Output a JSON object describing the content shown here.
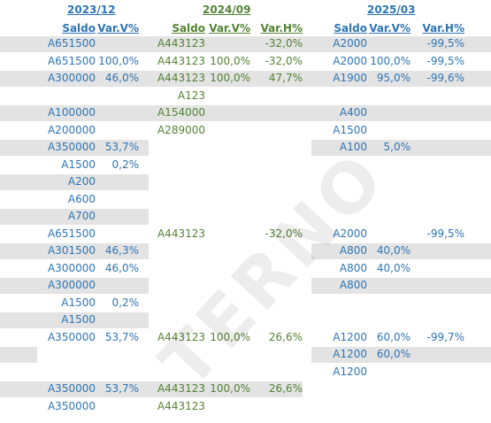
{
  "periods": [
    {
      "label": "2023/12",
      "columns": [
        "Saldo",
        "Var.V%"
      ]
    },
    {
      "label": "2024/09",
      "columns": [
        "Saldo",
        "Var.V%",
        "Var.H%"
      ]
    },
    {
      "label": "2025/03",
      "columns": [
        "Saldo",
        "Var.V%",
        "Var.H%"
      ]
    }
  ],
  "watermark": "TERNO",
  "rows": [
    {
      "band": [
        0,
        555
      ],
      "cells": [
        "A651500",
        "",
        "A443123",
        "",
        "-32,0%",
        "A2000",
        "",
        "-99,5%"
      ]
    },
    {
      "band": null,
      "cells": [
        "A651500",
        "100,0%",
        "A443123",
        "100,0%",
        "-32,0%",
        "A2000",
        "100,0%",
        "-99,5%"
      ]
    },
    {
      "band": [
        0,
        555
      ],
      "cells": [
        "A300000",
        "46,0%",
        "A443123",
        "100,0%",
        "47,7%",
        "A1900",
        "95,0%",
        "-99,6%"
      ]
    },
    {
      "band": null,
      "cells": [
        "",
        "",
        "A123",
        "",
        "",
        "",
        "",
        ""
      ]
    },
    {
      "band": [
        0,
        555
      ],
      "cells": [
        "A100000",
        "",
        "A154000",
        "",
        "",
        "A400",
        "",
        ""
      ]
    },
    {
      "band": null,
      "cells": [
        "A200000",
        "",
        "A289000",
        "",
        "",
        "A1500",
        "",
        ""
      ]
    },
    {
      "band": [
        0,
        168
      ],
      "band2": [
        352,
        555
      ],
      "cells": [
        "A350000",
        "53,7%",
        "",
        "",
        "",
        "A100",
        "5,0%",
        ""
      ]
    },
    {
      "band": null,
      "cells": [
        "A1500",
        "0,2%",
        "",
        "",
        "",
        "",
        "",
        ""
      ]
    },
    {
      "band": [
        0,
        168
      ],
      "cells": [
        "A200",
        "",
        "",
        "",
        "",
        "",
        "",
        ""
      ]
    },
    {
      "band": null,
      "cells": [
        "A600",
        "",
        "",
        "",
        "",
        "",
        "",
        ""
      ]
    },
    {
      "band": [
        0,
        168
      ],
      "cells": [
        "A700",
        "",
        "",
        "",
        "",
        "",
        "",
        ""
      ]
    },
    {
      "band": null,
      "cells": [
        "A651500",
        "",
        "A443123",
        "",
        "-32,0%",
        "A2000",
        "",
        "-99,5%"
      ]
    },
    {
      "band": [
        0,
        168
      ],
      "band2": [
        352,
        555
      ],
      "cells": [
        "A301500",
        "46,3%",
        "",
        "",
        "",
        "A800",
        "40,0%",
        ""
      ]
    },
    {
      "band": null,
      "cells": [
        "A300000",
        "46,0%",
        "",
        "",
        "",
        "A800",
        "40,0%",
        ""
      ]
    },
    {
      "band": [
        0,
        168
      ],
      "band2": [
        352,
        555
      ],
      "cells": [
        "A300000",
        "",
        "",
        "",
        "",
        "A800",
        "",
        ""
      ]
    },
    {
      "band": null,
      "cells": [
        "A1500",
        "0,2%",
        "",
        "",
        "",
        "",
        "",
        ""
      ]
    },
    {
      "band": [
        0,
        168
      ],
      "cells": [
        "A1500",
        "",
        "",
        "",
        "",
        "",
        "",
        ""
      ]
    },
    {
      "band": null,
      "cells": [
        "A350000",
        "53,7%",
        "A443123",
        "100,0%",
        "26,6%",
        "A1200",
        "60,0%",
        "-99,7%"
      ]
    },
    {
      "band": [
        0,
        42
      ],
      "band2": [
        352,
        555
      ],
      "cells": [
        "",
        "",
        "",
        "",
        "",
        "A1200",
        "60,0%",
        ""
      ]
    },
    {
      "band": null,
      "cells": [
        "",
        "",
        "",
        "",
        "",
        "A1200",
        "",
        ""
      ]
    },
    {
      "band": [
        0,
        342
      ],
      "cells": [
        "A350000",
        "53,7%",
        "A443123",
        "100,0%",
        "26,6%",
        "",
        "",
        ""
      ]
    },
    {
      "band": null,
      "cells": [
        "A350000",
        "",
        "A443123",
        "",
        "",
        "",
        "",
        ""
      ]
    }
  ]
}
